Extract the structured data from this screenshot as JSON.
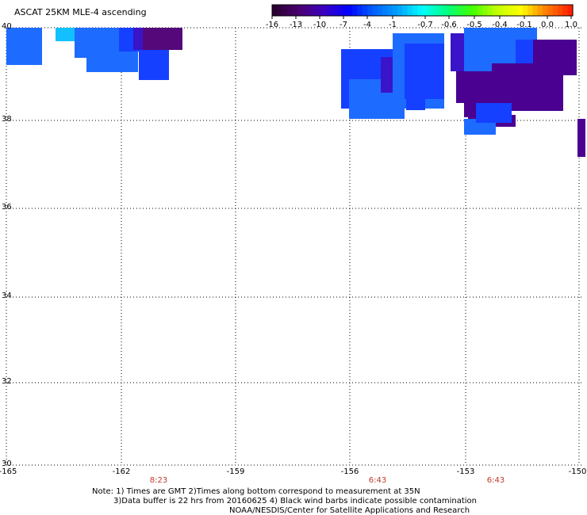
{
  "title": "ASCAT 25KM MLE-4 ascending",
  "colorbar": {
    "tick_labels": [
      "-16",
      "-13",
      "-10",
      "-7",
      "-4",
      "-1",
      "-0.7",
      "-0.6",
      "-0.5",
      "-0.4",
      "-0.1",
      "0.0",
      "1.0"
    ],
    "colors": [
      "#2a0030",
      "#4b0070",
      "#3a00c0",
      "#0000ff",
      "#0060ff",
      "#00a0ff",
      "#00ffff",
      "#00ff80",
      "#40ff00",
      "#c0ff00",
      "#ffff00",
      "#ff8000",
      "#ff2000"
    ]
  },
  "map": {
    "lat_labels": [
      "40",
      "38",
      "36",
      "34",
      "32",
      "30"
    ],
    "lon_labels": [
      "-165",
      "-162",
      "-159",
      "-156",
      "-153",
      "-150"
    ],
    "time_labels": [
      "8:23",
      "6:43",
      "6:43"
    ],
    "swath_colors": {
      "blue": "#1540ff",
      "light_blue": "#1e6bff",
      "cyan": "#12c0ff",
      "purple": "#4a0090",
      "dark_purple": "#55087a",
      "indigo": "#3a14c8"
    }
  },
  "notes": {
    "line1": "Note: 1) Times are GMT 2)Times along bottom correspond to measurement at 35N",
    "line2": "3)Data buffer is 22 hrs from 20160625 4) Black wind barbs indicate possible contamination",
    "line3": "NOAA/NESDIS/Center for Satellite Applications and Research"
  }
}
